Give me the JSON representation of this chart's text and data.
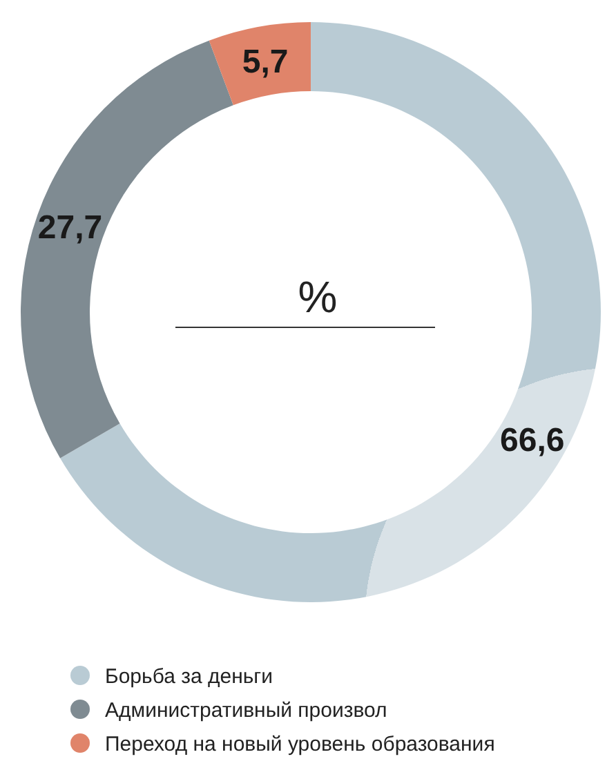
{
  "chart_data": {
    "type": "donut",
    "title": "%",
    "categories": [
      "Борьба за деньги",
      "Административный произвол",
      "Переход на новый уровень образования"
    ],
    "values": [
      66.6,
      27.7,
      5.7
    ],
    "value_labels": [
      "66,6",
      "27,7",
      "5,7"
    ],
    "colors": [
      "#b9cbd4",
      "#7f8b92",
      "#e0846a"
    ],
    "legend": "bottom"
  }
}
